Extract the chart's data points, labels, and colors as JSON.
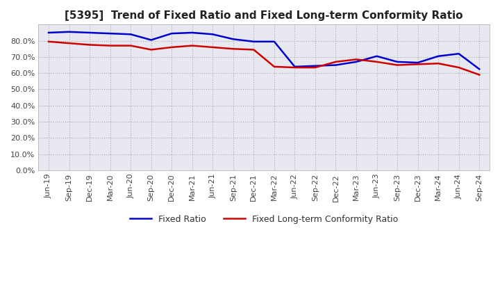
{
  "title": "[5395]  Trend of Fixed Ratio and Fixed Long-term Conformity Ratio",
  "x_labels": [
    "Jun-19",
    "Sep-19",
    "Dec-19",
    "Mar-20",
    "Jun-20",
    "Sep-20",
    "Dec-20",
    "Mar-21",
    "Jun-21",
    "Sep-21",
    "Dec-21",
    "Mar-22",
    "Jun-22",
    "Sep-22",
    "Dec-22",
    "Mar-23",
    "Jun-23",
    "Sep-23",
    "Dec-23",
    "Mar-24",
    "Jun-24",
    "Sep-24"
  ],
  "fixed_ratio": [
    85.0,
    85.5,
    85.0,
    84.5,
    84.0,
    80.5,
    84.5,
    85.0,
    84.0,
    81.0,
    79.5,
    79.5,
    64.0,
    64.5,
    65.0,
    67.0,
    70.5,
    67.0,
    66.5,
    70.5,
    72.0,
    62.5
  ],
  "fixed_lt_ratio": [
    79.5,
    78.5,
    77.5,
    77.0,
    77.0,
    74.5,
    76.0,
    77.0,
    76.0,
    75.0,
    74.5,
    64.0,
    63.5,
    63.5,
    67.0,
    68.5,
    67.0,
    65.0,
    65.5,
    66.0,
    63.5,
    59.0
  ],
  "fixed_ratio_color": "#0000cd",
  "fixed_lt_ratio_color": "#cc0000",
  "ylim": [
    0,
    90
  ],
  "yticks": [
    0,
    10,
    20,
    30,
    40,
    50,
    60,
    70,
    80
  ],
  "background_color": "#ffffff",
  "plot_bg_color": "#e8e8f0",
  "grid_color": "#aaaaaa",
  "title_fontsize": 11,
  "tick_fontsize": 8
}
